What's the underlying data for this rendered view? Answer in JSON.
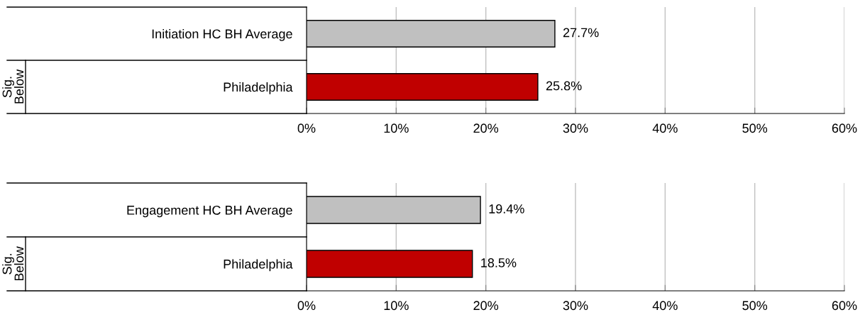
{
  "chart_data": [
    {
      "type": "bar",
      "orientation": "horizontal",
      "categories": [
        "Initiation HC BH Average",
        "Philadelphia"
      ],
      "values": [
        27.7,
        25.8
      ],
      "colors": [
        "#c0c0c0",
        "#c00000"
      ],
      "value_labels": [
        "27.7%",
        "25.8%"
      ],
      "xlim": [
        0,
        60
      ],
      "xticks": [
        {
          "value": 0,
          "label": "0%"
        },
        {
          "value": 10,
          "label": "10%"
        },
        {
          "value": 20,
          "label": "20%"
        },
        {
          "value": 30,
          "label": "30%"
        },
        {
          "value": 40,
          "label": "40%"
        },
        {
          "value": 50,
          "label": "50%"
        },
        {
          "value": 60,
          "label": "60%"
        }
      ],
      "grid": "x",
      "annotations": [
        "Sig.\nBelow"
      ]
    },
    {
      "type": "bar",
      "orientation": "horizontal",
      "categories": [
        "Engagement HC BH Average",
        "Philadelphia"
      ],
      "values": [
        19.4,
        18.5
      ],
      "colors": [
        "#c0c0c0",
        "#c00000"
      ],
      "value_labels": [
        "19.4%",
        "18.5%"
      ],
      "xlim": [
        0,
        60
      ],
      "xticks": [
        {
          "value": 0,
          "label": "0%"
        },
        {
          "value": 10,
          "label": "10%"
        },
        {
          "value": 20,
          "label": "20%"
        },
        {
          "value": 30,
          "label": "30%"
        },
        {
          "value": 40,
          "label": "40%"
        },
        {
          "value": 50,
          "label": "50%"
        },
        {
          "value": 60,
          "label": "60%"
        }
      ],
      "grid": "x",
      "annotations": [
        "Sig.\nBelow"
      ]
    }
  ]
}
